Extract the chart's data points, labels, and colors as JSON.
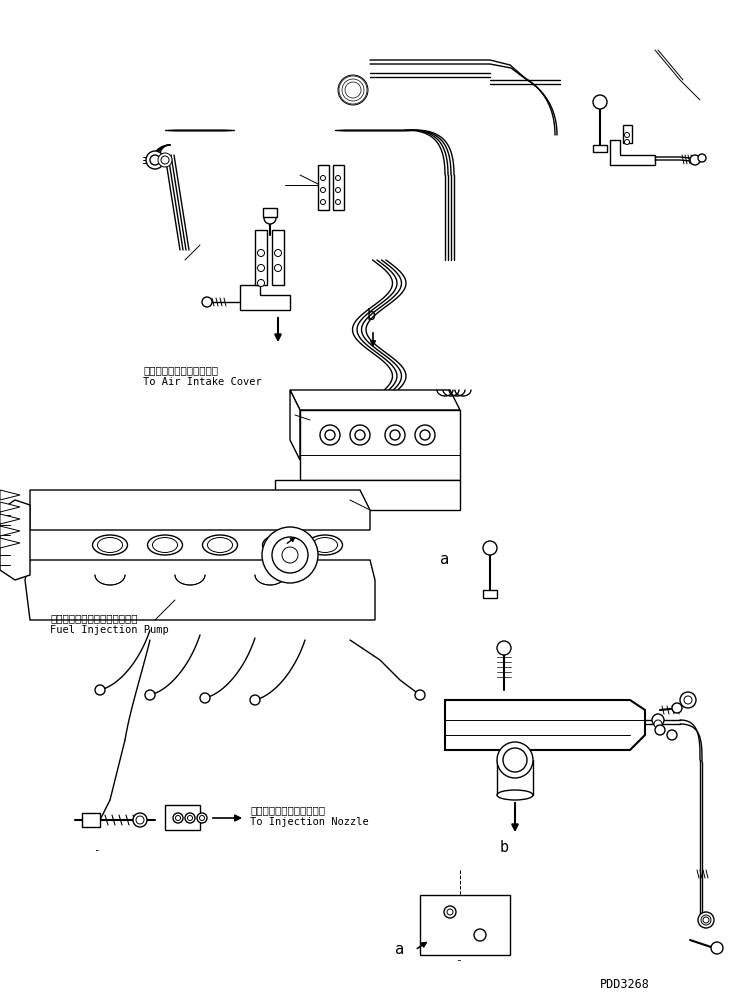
{
  "bg_color": "#ffffff",
  "line_color": "#000000",
  "fig_width": 7.32,
  "fig_height": 9.99,
  "dpi": 100,
  "part_code": "PDD3268",
  "label_a": "a",
  "label_b": "b",
  "annotation_air_jp": "エアーインテークカバーヘ",
  "annotation_air_en": "To Air Intake Cover",
  "annotation_fuel_jp": "フェルインジェクションポンプ",
  "annotation_fuel_en": "Fuel Injection Pump",
  "annotation_inj_jp": "インジェクションノズルヘ",
  "annotation_inj_en": "To Injection Nozzle",
  "small_fs": 7.5,
  "mono_font": "monospace"
}
